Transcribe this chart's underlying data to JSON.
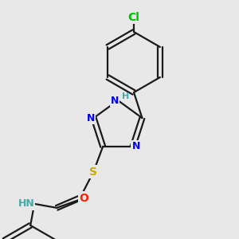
{
  "background_color": "#e8e8e8",
  "bond_color": "#1a1a1a",
  "line_width": 1.6,
  "figsize": [
    3.0,
    3.0
  ],
  "dpi": 100,
  "atom_colors": {
    "Cl": "#00bb00",
    "N": "#0000ee",
    "NH": "#44aaaa",
    "S": "#ccaa00",
    "O": "#ff2200"
  }
}
